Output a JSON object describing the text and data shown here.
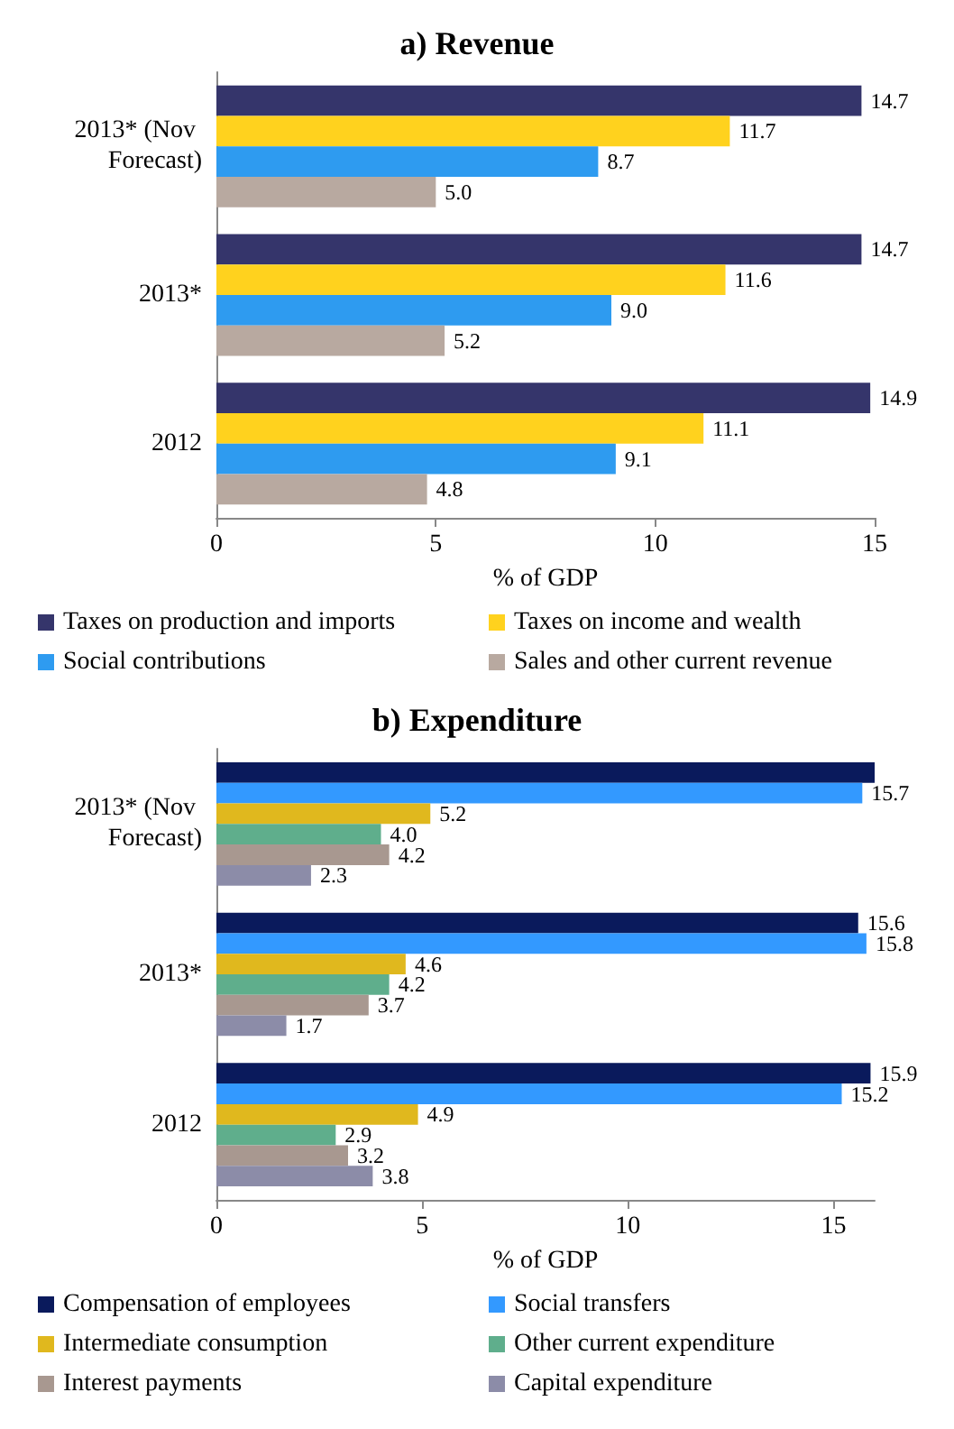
{
  "chart_data": [
    {
      "type": "bar",
      "orientation": "horizontal",
      "title": "a) Revenue",
      "xlabel": "% of GDP",
      "categories": [
        "2013* (Nov Forecast)",
        "2013*",
        "2012"
      ],
      "xlim": [
        0,
        15
      ],
      "xticks": [
        0,
        5,
        10,
        15
      ],
      "grid": false,
      "legend": "bottom",
      "series": [
        {
          "name": "Taxes on production and imports",
          "color": "#35356b",
          "values": [
            14.7,
            14.7,
            14.9
          ],
          "value_labels": [
            "14.7",
            "14.7",
            "14.9"
          ]
        },
        {
          "name": "Taxes on income and wealth",
          "color": "#ffd21e",
          "values": [
            11.7,
            11.6,
            11.1
          ],
          "value_labels": [
            "11.7",
            "11.6",
            "11.1"
          ]
        },
        {
          "name": "Social contributions",
          "color": "#2e9bf0",
          "values": [
            8.7,
            9.0,
            9.1
          ],
          "value_labels": [
            "8.7",
            "9.0",
            "9.1"
          ]
        },
        {
          "name": "Sales and other current revenue",
          "color": "#b8a9a0",
          "values": [
            5.0,
            5.2,
            4.8
          ],
          "value_labels": [
            "5.0",
            "5.2",
            "4.8"
          ]
        }
      ]
    },
    {
      "type": "bar",
      "orientation": "horizontal",
      "title": "b) Expenditure",
      "xlabel": "% of GDP",
      "categories": [
        "2013* (Nov Forecast)",
        "2013*",
        "2012"
      ],
      "xlim": [
        0,
        16
      ],
      "xticks": [
        0,
        5,
        10,
        15
      ],
      "grid": false,
      "legend": "bottom",
      "series": [
        {
          "name": "Compensation of employees",
          "color": "#0a1a5c",
          "values": [
            16.0,
            15.6,
            15.9
          ],
          "value_labels": [
            null,
            "15.6",
            "15.9"
          ]
        },
        {
          "name": "Social transfers",
          "color": "#3399ff",
          "values": [
            15.7,
            15.8,
            15.2
          ],
          "value_labels": [
            "15.7",
            "15.8",
            "15.2"
          ]
        },
        {
          "name": "Intermediate consumption",
          "color": "#e0b81e",
          "values": [
            5.2,
            4.6,
            4.9
          ],
          "value_labels": [
            "5.2",
            "4.6",
            "4.9"
          ]
        },
        {
          "name": "Other current expenditure",
          "color": "#5fae8c",
          "values": [
            4.0,
            4.2,
            2.9
          ],
          "value_labels": [
            "4.0",
            "4.2",
            "2.9"
          ]
        },
        {
          "name": "Interest payments",
          "color": "#a89890",
          "values": [
            4.2,
            3.7,
            3.2
          ],
          "value_labels": [
            "4.2",
            "3.7",
            "3.2"
          ]
        },
        {
          "name": "Capital expenditure",
          "color": "#8c8ca8",
          "values": [
            2.3,
            1.7,
            3.8
          ],
          "value_labels": [
            "2.3",
            "1.7",
            "3.8"
          ]
        }
      ]
    }
  ]
}
